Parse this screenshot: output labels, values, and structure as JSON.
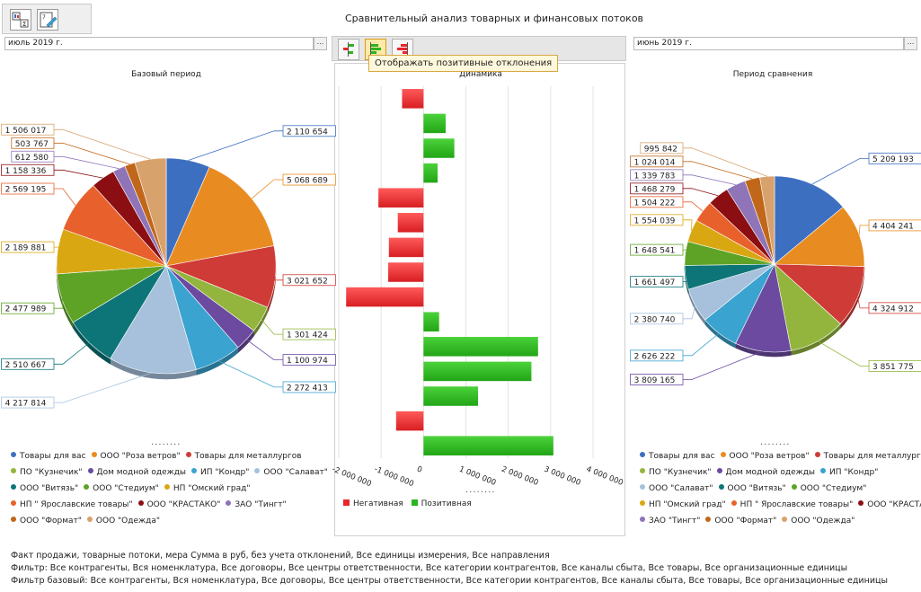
{
  "header": {
    "title": "Сравнительный анализ товарных и финансовых потоков"
  },
  "periods": {
    "left": "июль 2019 г.",
    "right": "июнь 2019 г.",
    "button_label": "..."
  },
  "tooltip": "Отображать позитивные отклонения",
  "icons": {
    "toolbar": [
      "chart-table-icon",
      "chart-edit-icon"
    ],
    "mid_toolbar": [
      "all-deviations-icon",
      "positive-deviations-icon",
      "negative-deviations-icon"
    ]
  },
  "legend_more": "........",
  "chart_data": [
    {
      "type": "pie",
      "title": "Базовый период",
      "labels": [
        "Товары для вас",
        "ООО \"Роза ветров\"",
        "Товары для металлургов",
        "ПО \"Кузнечик\"",
        "Дом модной одежды",
        "ИП \"Кондр\"",
        "ООО \"Салават\"",
        "ООО \"Витязь\"",
        "ООО \"Стедиум\"",
        "НП \"Омский град\"",
        "НП \" Ярославские товары\"",
        "ООО \"КРАСТАКО\"",
        "ЗАО \"Тингт\"",
        "ООО \"Формат\"",
        "ООО \"Одежда\""
      ],
      "values": [
        2110654,
        5068689,
        3021652,
        1301424,
        1100974,
        2272413,
        4217814,
        2510667,
        2477989,
        2189881,
        2569195,
        1158336,
        612580,
        503767,
        1506017
      ],
      "value_labels": [
        "2 110 654",
        "5 068 689",
        "3 021 652",
        "1 301 424",
        "1 100 974",
        "2 272 413",
        "4 217 814",
        "2 510 667",
        "2 477 989",
        "2 189 881",
        "2 569 195",
        "1 158 336",
        "612 580",
        "503 767",
        "1 506 017"
      ],
      "colors": [
        "#3d6fc1",
        "#e88c21",
        "#cf3b36",
        "#93b53d",
        "#6b4aa0",
        "#3aa3cf",
        "#a7c1dc",
        "#0d7578",
        "#5ea326",
        "#d9a711",
        "#e8612c",
        "#8b0f12",
        "#8f74b8",
        "#c1671a",
        "#d8a26d"
      ]
    },
    {
      "type": "bar",
      "orientation": "horizontal",
      "title": "Динамика",
      "values": [
        -506000,
        522000,
        727000,
        333000,
        -1064000,
        -607000,
        -817000,
        -833000,
        -1826000,
        368000,
        2703000,
        2546000,
        1287000,
        -647000,
        3064000
      ],
      "xlim": [
        -2000000,
        4000000
      ],
      "x_ticks": [
        "-2 000 000",
        "-1 000 000",
        "0",
        "1 000 000",
        "2 000 000",
        "3 000 000",
        "4 000 000"
      ],
      "series": [
        {
          "name": "Негативная",
          "color": "#e8262b"
        },
        {
          "name": "Позитивная",
          "color": "#2db31f"
        }
      ]
    },
    {
      "type": "pie",
      "title": "Период сравнения",
      "labels": [
        "Товары для вас",
        "ООО \"Роза ветров\"",
        "Товары для металлургов",
        "ПО \"Кузнечик\"",
        "Дом модной одежды",
        "ИП \"Кондр\"",
        "ООО \"Салават\"",
        "ООО \"Витязь\"",
        "ООО \"Стедиум\"",
        "НП \"Омский град\"",
        "НП \" Ярославские товары\"",
        "ООО \"КРАСТАКО\"",
        "ЗАО \"Тингт\"",
        "ООО \"Формат\"",
        "ООО \"Одежда\""
      ],
      "values": [
        5209193,
        4404241,
        4324912,
        3851775,
        3809165,
        2626222,
        2380740,
        1661497,
        1648541,
        1554039,
        1504222,
        1468279,
        1339783,
        1024014,
        995842
      ],
      "value_labels": [
        "5 209 193",
        "4 404 241",
        "4 324 912",
        "3 851 775",
        "3 809 165",
        "2 626 222",
        "2 380 740",
        "1 661 497",
        "1 648 541",
        "1 554 039",
        "1 504 222",
        "1 468 279",
        "1 339 783",
        "1 024 014",
        "995 842"
      ],
      "colors": [
        "#3d6fc1",
        "#e88c21",
        "#cf3b36",
        "#93b53d",
        "#6b4aa0",
        "#3aa3cf",
        "#a7c1dc",
        "#0d7578",
        "#5ea326",
        "#d9a711",
        "#e8612c",
        "#8b0f12",
        "#8f74b8",
        "#c1671a",
        "#d8a26d"
      ]
    }
  ],
  "footer": {
    "line1": "Факт продажи, товарные потоки, мера Сумма в руб, без учета отклонений, Все единицы измерения, Все направления",
    "line2": "Фильтр: Все контрагенты, Вся номенклатура, Все договоры, Все центры ответственности, Все категории контрагентов, Все каналы сбыта, Все товары, Все организационные единицы",
    "line3": "Фильтр базовый: Все контрагенты, Вся номенклатура, Все договоры, Все центры ответственности, Все категории контрагентов, Все каналы сбыта, Все товары, Все организационные единицы"
  }
}
